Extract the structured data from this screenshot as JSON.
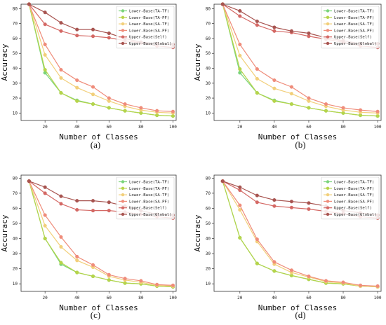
{
  "series_meta": [
    {
      "name": "Lower-Base(TA-TF)",
      "color": "#79d47a"
    },
    {
      "name": "Lower-Base(TA-PF)",
      "color": "#b6d44a"
    },
    {
      "name": "Lower-Base(SA-TF)",
      "color": "#f2cf7a"
    },
    {
      "name": "Lower-Base(SA-PF)",
      "color": "#ef8c7a"
    },
    {
      "name": "Upper-Base(Self)",
      "color": "#d46864"
    },
    {
      "name": "Upper-Base(Global)",
      "color": "#a85450"
    }
  ],
  "chart_data": [
    {
      "type": "line",
      "panel_label": "(a)",
      "xlabel": "Number of Classes",
      "ylabel": "Accuracy",
      "xlim": [
        5,
        102
      ],
      "ylim": [
        5,
        83
      ],
      "xticks": [
        20,
        40,
        60,
        80,
        100
      ],
      "yticks": [
        10,
        20,
        30,
        40,
        50,
        60,
        70,
        80
      ],
      "legend_position": "top-right",
      "grid": false,
      "x": [
        10,
        20,
        30,
        40,
        50,
        60,
        70,
        80,
        90,
        100
      ],
      "series": [
        {
          "name": "Lower-Base(TA-TF)",
          "values": [
            83,
            37,
            23.5,
            18.5,
            16,
            13.5,
            11.5,
            10,
            8.5,
            8
          ]
        },
        {
          "name": "Lower-Base(TA-PF)",
          "values": [
            83,
            39,
            23.5,
            18,
            16,
            13.5,
            11.5,
            10,
            8.5,
            8
          ]
        },
        {
          "name": "Lower-Base(SA-TF)",
          "values": [
            83,
            49,
            33.5,
            27,
            22.5,
            18,
            14.5,
            12,
            10.5,
            10
          ]
        },
        {
          "name": "Lower-Base(SA-PF)",
          "values": [
            83,
            56,
            39,
            32,
            27.5,
            20,
            16,
            13.5,
            11.5,
            11
          ]
        },
        {
          "name": "Upper-Base(Self)",
          "values": [
            83,
            69.5,
            65,
            62,
            61.5,
            60.5,
            58.5,
            57,
            55,
            54
          ]
        },
        {
          "name": "Upper-Base(Global)",
          "values": [
            83,
            77.5,
            70.5,
            66,
            66,
            63.5,
            60,
            57.5,
            56.5,
            56
          ]
        }
      ]
    },
    {
      "type": "line",
      "panel_label": "(b)",
      "xlabel": "Number of Classes",
      "ylabel": "Accuracy",
      "xlim": [
        5,
        102
      ],
      "ylim": [
        5,
        83
      ],
      "xticks": [
        20,
        40,
        60,
        80,
        100
      ],
      "yticks": [
        10,
        20,
        30,
        40,
        50,
        60,
        70,
        80
      ],
      "legend_position": "top-right",
      "grid": false,
      "x": [
        10,
        20,
        30,
        40,
        50,
        60,
        70,
        80,
        90,
        100
      ],
      "series": [
        {
          "name": "Lower-Base(TA-TF)",
          "values": [
            83,
            37,
            23.5,
            18.5,
            16,
            13.5,
            11.5,
            10,
            8.5,
            8
          ]
        },
        {
          "name": "Lower-Base(TA-PF)",
          "values": [
            83,
            39.5,
            23.5,
            18,
            16,
            13.5,
            11.5,
            10,
            8.5,
            8
          ]
        },
        {
          "name": "Lower-Base(SA-TF)",
          "values": [
            83,
            48.5,
            33,
            26.5,
            23,
            18,
            14.5,
            12,
            10.5,
            10
          ]
        },
        {
          "name": "Lower-Base(SA-PF)",
          "values": [
            83,
            56,
            39.5,
            32,
            27.5,
            20,
            16,
            13.5,
            12,
            11
          ]
        },
        {
          "name": "Upper-Base(Self)",
          "values": [
            83,
            75,
            69,
            65,
            64,
            61.5,
            59.5,
            57.5,
            55,
            54
          ]
        },
        {
          "name": "Upper-Base(Global)",
          "values": [
            83,
            78.5,
            71.5,
            67.5,
            65,
            63.5,
            60.5,
            58.5,
            56.5,
            56.5
          ]
        }
      ]
    },
    {
      "type": "line",
      "panel_label": "(c)",
      "xlabel": "Number of Classes",
      "ylabel": "Accuracy",
      "xlim": [
        5,
        102
      ],
      "ylim": [
        5,
        82
      ],
      "xticks": [
        20,
        40,
        60,
        80,
        100
      ],
      "yticks": [
        10,
        20,
        30,
        40,
        50,
        60,
        70,
        80
      ],
      "legend_position": "top-right",
      "grid": false,
      "x": [
        10,
        20,
        30,
        40,
        50,
        60,
        70,
        80,
        90,
        100
      ],
      "series": [
        {
          "name": "Lower-Base(TA-TF)",
          "values": [
            78,
            40,
            23,
            17.5,
            15,
            12.5,
            10.5,
            10,
            8.5,
            8
          ]
        },
        {
          "name": "Lower-Base(TA-PF)",
          "values": [
            78,
            40,
            24,
            17.5,
            15,
            12.5,
            10.5,
            10,
            8.5,
            8
          ]
        },
        {
          "name": "Lower-Base(SA-TF)",
          "values": [
            78,
            48.5,
            34.5,
            25.5,
            21,
            15,
            12.5,
            11,
            9,
            8.5
          ]
        },
        {
          "name": "Lower-Base(SA-PF)",
          "values": [
            78,
            55.5,
            41,
            28,
            22.5,
            16,
            13.5,
            12,
            9.5,
            9
          ]
        },
        {
          "name": "Upper-Base(Self)",
          "values": [
            78,
            70,
            63,
            59,
            58.5,
            58.5,
            57.5,
            56,
            54.5,
            53.5
          ]
        },
        {
          "name": "Upper-Base(Global)",
          "values": [
            78,
            74,
            68,
            65,
            65,
            64,
            61.5,
            58.5,
            56,
            55.5
          ]
        }
      ]
    },
    {
      "type": "line",
      "panel_label": "(d)",
      "xlabel": "Number of Classes",
      "ylabel": "Accuracy",
      "xlim": [
        5,
        102
      ],
      "ylim": [
        5,
        82
      ],
      "xticks": [
        20,
        40,
        60,
        80,
        100
      ],
      "yticks": [
        10,
        20,
        30,
        40,
        50,
        60,
        70,
        80
      ],
      "legend_position": "top-right",
      "grid": false,
      "x": [
        10,
        20,
        30,
        40,
        50,
        60,
        70,
        80,
        90,
        100
      ],
      "series": [
        {
          "name": "Lower-Base(TA-TF)",
          "values": [
            78,
            40.5,
            23.5,
            18.5,
            15.5,
            13,
            10.5,
            10,
            8.5,
            8
          ]
        },
        {
          "name": "Lower-Base(TA-PF)",
          "values": [
            78,
            40.5,
            23.5,
            18.5,
            15.5,
            13,
            10.5,
            10,
            8.5,
            8
          ]
        },
        {
          "name": "Lower-Base(SA-TF)",
          "values": [
            78,
            59,
            38,
            23,
            17.5,
            14.5,
            11.5,
            10.5,
            8.5,
            8
          ]
        },
        {
          "name": "Lower-Base(SA-PF)",
          "values": [
            78,
            62,
            39.5,
            24.5,
            19,
            15,
            12,
            11,
            9,
            8.5
          ]
        },
        {
          "name": "Upper-Base(Self)",
          "values": [
            78,
            72,
            64,
            61.5,
            60.5,
            59.5,
            58,
            56.5,
            54.5,
            53.5
          ]
        },
        {
          "name": "Upper-Base(Global)",
          "values": [
            78,
            74,
            68.5,
            65.5,
            64.5,
            63.5,
            61.5,
            58.5,
            57,
            55.5
          ]
        }
      ]
    }
  ]
}
